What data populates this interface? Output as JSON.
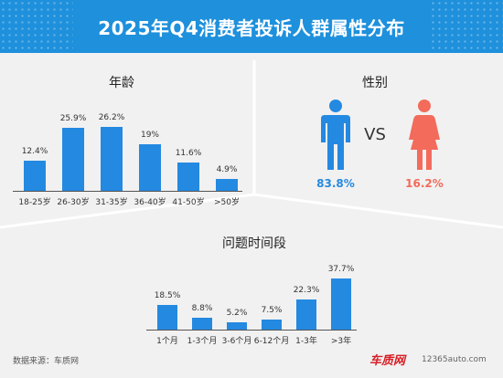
{
  "header": {
    "title": "2025年Q4消费者投诉人群属性分布"
  },
  "colors": {
    "header": "#1e90dc",
    "bar": "#2489e1",
    "male": "#2489e1",
    "female": "#f26b5b"
  },
  "age_panel": {
    "title": "年龄"
  },
  "gender_panel": {
    "title": "性别",
    "vs": "VS",
    "male_pct": "83.8%",
    "female_pct": "16.2%",
    "male_icon": "male-person-icon",
    "female_icon": "female-person-icon"
  },
  "period_panel": {
    "title": "问题时间段"
  },
  "chart_data": [
    {
      "type": "bar",
      "title": "年龄",
      "categories": [
        "18-25岁",
        "26-30岁",
        "31-35岁",
        "36-40岁",
        "41-50岁",
        ">50岁"
      ],
      "values": [
        12.4,
        25.9,
        26.2,
        19,
        11.6,
        4.9
      ],
      "labels": [
        "12.4%",
        "25.9%",
        "26.2%",
        "19%",
        "11.6%",
        "4.9%"
      ],
      "unit": "%"
    },
    {
      "type": "bar",
      "title": "性别",
      "categories": [
        "男",
        "女"
      ],
      "values": [
        83.8,
        16.2
      ],
      "labels": [
        "83.8%",
        "16.2%"
      ],
      "unit": "%"
    },
    {
      "type": "bar",
      "title": "问题时间段",
      "categories": [
        "1个月",
        "1-3个月",
        "3-6个月",
        "6-12个月",
        "1-3年",
        ">3年"
      ],
      "values": [
        18.5,
        8.8,
        5.2,
        7.5,
        22.3,
        37.7
      ],
      "labels": [
        "18.5%",
        "8.8%",
        "5.2%",
        "7.5%",
        "22.3%",
        "37.7%"
      ],
      "unit": "%"
    }
  ],
  "footer": {
    "source": "数据来源：车质网",
    "watermark_logo": "车质网",
    "watermark_url": "12365auto.com"
  }
}
